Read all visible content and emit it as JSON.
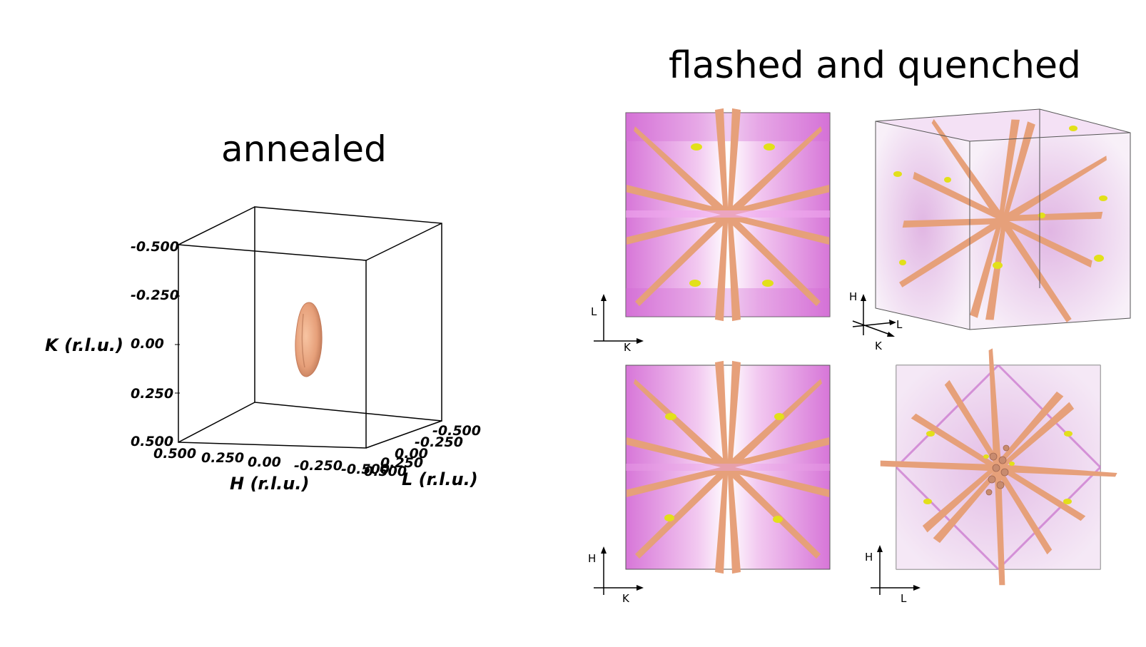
{
  "titles": {
    "left": "annealed",
    "right": "flashed and quenched"
  },
  "annealed_plot": {
    "k_axis_label": "K (r.l.u.)",
    "h_axis_label": "H (r.l.u.)",
    "l_axis_label": "L (r.l.u.)",
    "k_ticks": [
      "-0.500",
      "-0.250",
      "0.00",
      "0.250",
      "0.500"
    ],
    "h_ticks": [
      "0.500",
      "0.250",
      "0.00",
      "-0.250",
      "-0.500"
    ],
    "l_ticks": [
      "-0.500",
      "-0.250",
      "0.00",
      "0.250",
      "0.500"
    ]
  },
  "panels": {
    "top_left": {
      "vertical": "L",
      "horizontal": "K"
    },
    "top_right": {
      "vertical": "H",
      "horizontal": "L",
      "depth": "K"
    },
    "bottom_left": {
      "vertical": "H",
      "horizontal": "K"
    },
    "bottom_right": {
      "vertical": "H",
      "horizontal": "L"
    }
  },
  "colors": {
    "background_magenta": "#d977d9",
    "isosurface_peach": "#e9a47f",
    "highlight_yellow": "#e2e01a"
  }
}
